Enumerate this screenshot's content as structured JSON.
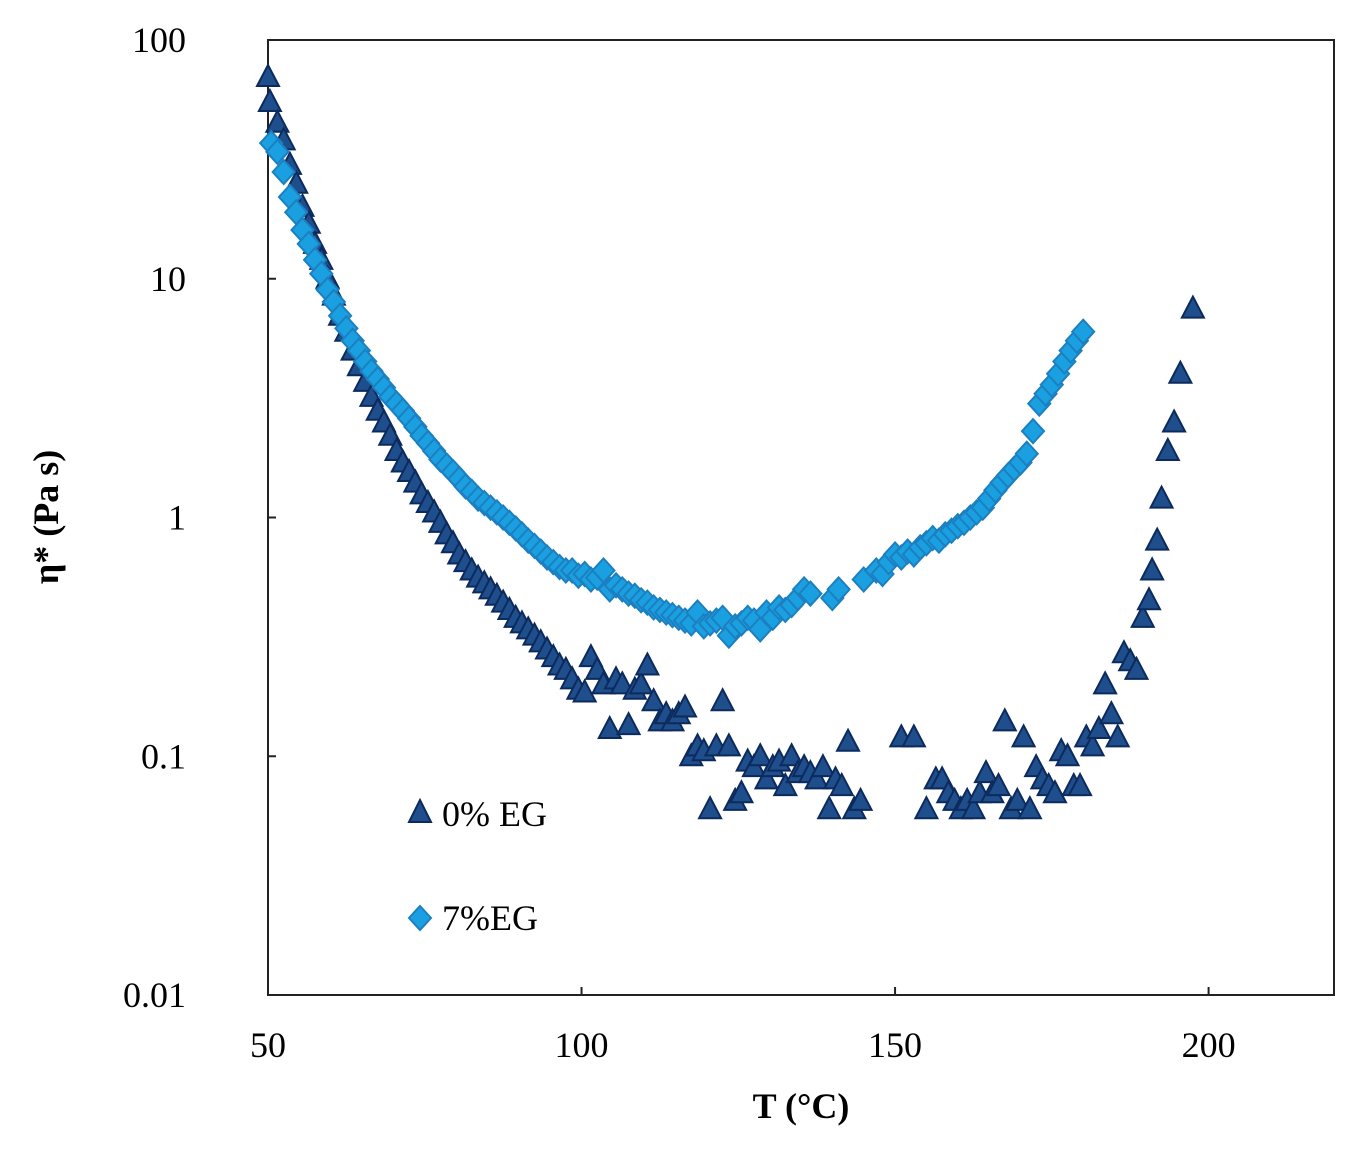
{
  "chart_data": {
    "type": "scatter",
    "title": "",
    "xlabel": "T (°C)",
    "ylabel": "η* (Pa s)",
    "xscale": "linear",
    "yscale": "log",
    "xlim": [
      50,
      220
    ],
    "ylim": [
      0.01,
      100
    ],
    "xticks": [
      50,
      100,
      150,
      200
    ],
    "xtick_labels": [
      "50",
      "100",
      "150",
      "200"
    ],
    "yticks": [
      0.01,
      0.1,
      1,
      10,
      100
    ],
    "ytick_labels": [
      "0.01",
      "0.1",
      "1",
      "10",
      "100"
    ],
    "grid": false,
    "legend_position": "bottom-left",
    "series": [
      {
        "name": "0% EG",
        "marker": "triangle",
        "color": "#1F4E8C",
        "edge_color": "#0D2A5C",
        "points": [
          [
            50,
            70
          ],
          [
            50.3,
            55
          ],
          [
            51.5,
            45
          ],
          [
            52.5,
            38
          ],
          [
            53.5,
            30
          ],
          [
            54.5,
            25
          ],
          [
            55.5,
            20
          ],
          [
            56.5,
            17
          ],
          [
            57.5,
            14
          ],
          [
            58.5,
            12
          ],
          [
            59.5,
            10
          ],
          [
            60.5,
            8.5
          ],
          [
            61.5,
            7
          ],
          [
            62.5,
            6
          ],
          [
            63.5,
            5
          ],
          [
            64.5,
            4.3
          ],
          [
            65.5,
            3.7
          ],
          [
            66.5,
            3.2
          ],
          [
            67.5,
            2.8
          ],
          [
            68.5,
            2.5
          ],
          [
            69.5,
            2.2
          ],
          [
            70.5,
            1.9
          ],
          [
            71.5,
            1.7
          ],
          [
            72.5,
            1.55
          ],
          [
            73.5,
            1.4
          ],
          [
            74.5,
            1.25
          ],
          [
            75.5,
            1.15
          ],
          [
            76.5,
            1.05
          ],
          [
            77.5,
            0.95
          ],
          [
            78.5,
            0.85
          ],
          [
            79.5,
            0.78
          ],
          [
            80.5,
            0.7
          ],
          [
            81.5,
            0.65
          ],
          [
            82.5,
            0.6
          ],
          [
            83.5,
            0.56
          ],
          [
            84.5,
            0.53
          ],
          [
            85.5,
            0.5
          ],
          [
            86.5,
            0.47
          ],
          [
            87.5,
            0.44
          ],
          [
            88.5,
            0.41
          ],
          [
            89.5,
            0.38
          ],
          [
            90.5,
            0.36
          ],
          [
            91.5,
            0.34
          ],
          [
            92.5,
            0.32
          ],
          [
            93.5,
            0.3
          ],
          [
            94.5,
            0.28
          ],
          [
            95.5,
            0.26
          ],
          [
            96.5,
            0.24
          ],
          [
            97.5,
            0.23
          ],
          [
            98.5,
            0.21
          ],
          [
            99.5,
            0.19
          ],
          [
            100.5,
            0.185
          ],
          [
            101.5,
            0.26
          ],
          [
            102.5,
            0.23
          ],
          [
            103.5,
            0.2
          ],
          [
            104.5,
            0.13
          ],
          [
            105.5,
            0.21
          ],
          [
            106.5,
            0.2
          ],
          [
            107.5,
            0.135
          ],
          [
            108.5,
            0.19
          ],
          [
            109.5,
            0.2
          ],
          [
            110.5,
            0.24
          ],
          [
            111.5,
            0.17
          ],
          [
            112.5,
            0.14
          ],
          [
            113.5,
            0.15
          ],
          [
            114.5,
            0.14
          ],
          [
            115.5,
            0.15
          ],
          [
            116.5,
            0.16
          ],
          [
            117.5,
            0.1
          ],
          [
            118.5,
            0.11
          ],
          [
            119.5,
            0.105
          ],
          [
            120.5,
            0.06
          ],
          [
            121.5,
            0.11
          ],
          [
            122.5,
            0.17
          ],
          [
            123.5,
            0.11
          ],
          [
            124.5,
            0.065
          ],
          [
            125.5,
            0.07
          ],
          [
            126.5,
            0.095
          ],
          [
            127.5,
            0.09
          ],
          [
            128.5,
            0.1
          ],
          [
            129.5,
            0.08
          ],
          [
            130.5,
            0.09
          ],
          [
            131.5,
            0.095
          ],
          [
            132.5,
            0.075
          ],
          [
            133.5,
            0.1
          ],
          [
            134.5,
            0.085
          ],
          [
            135.5,
            0.09
          ],
          [
            136.5,
            0.085
          ],
          [
            137.5,
            0.08
          ],
          [
            138.5,
            0.09
          ],
          [
            139.5,
            0.06
          ],
          [
            140.5,
            0.08
          ],
          [
            141.5,
            0.075
          ],
          [
            142.5,
            0.115
          ],
          [
            143.5,
            0.06
          ],
          [
            144.5,
            0.065
          ],
          [
            151,
            0.12
          ],
          [
            153,
            0.12
          ],
          [
            155,
            0.06
          ],
          [
            156.5,
            0.08
          ],
          [
            157.5,
            0.08
          ],
          [
            158.5,
            0.07
          ],
          [
            159.5,
            0.065
          ],
          [
            160.5,
            0.06
          ],
          [
            161.5,
            0.065
          ],
          [
            162.5,
            0.06
          ],
          [
            163.5,
            0.07
          ],
          [
            164.5,
            0.085
          ],
          [
            165.5,
            0.07
          ],
          [
            166.5,
            0.075
          ],
          [
            167.5,
            0.14
          ],
          [
            168.5,
            0.06
          ],
          [
            169.5,
            0.065
          ],
          [
            170.5,
            0.12
          ],
          [
            171.5,
            0.06
          ],
          [
            172.5,
            0.09
          ],
          [
            173.5,
            0.08
          ],
          [
            174.5,
            0.075
          ],
          [
            175.5,
            0.07
          ],
          [
            176.5,
            0.105
          ],
          [
            177.5,
            0.1
          ],
          [
            178.5,
            0.075
          ],
          [
            179.5,
            0.075
          ],
          [
            180.5,
            0.12
          ],
          [
            181.5,
            0.11
          ],
          [
            182.5,
            0.13
          ],
          [
            183.5,
            0.2
          ],
          [
            184.5,
            0.15
          ],
          [
            185.5,
            0.12
          ],
          [
            186.5,
            0.27
          ],
          [
            187.5,
            0.25
          ],
          [
            188.5,
            0.23
          ],
          [
            189.5,
            0.38
          ],
          [
            190.5,
            0.45
          ],
          [
            191,
            0.6
          ],
          [
            191.8,
            0.8
          ],
          [
            192.5,
            1.2
          ],
          [
            193.5,
            1.9
          ],
          [
            194.5,
            2.5
          ],
          [
            195.5,
            4
          ],
          [
            197.5,
            7.5
          ]
        ]
      },
      {
        "name": "7%EG",
        "marker": "diamond",
        "color": "#1AA0E0",
        "edge_color": "#1C7FC0",
        "points": [
          [
            50.5,
            37
          ],
          [
            51.5,
            34
          ],
          [
            52.5,
            28
          ],
          [
            53.5,
            22
          ],
          [
            54.5,
            19
          ],
          [
            55.5,
            16
          ],
          [
            56.5,
            14
          ],
          [
            57.5,
            12
          ],
          [
            58.5,
            10.5
          ],
          [
            59.5,
            9
          ],
          [
            60.5,
            8
          ],
          [
            61.5,
            7
          ],
          [
            62.5,
            6.2
          ],
          [
            63.5,
            5.5
          ],
          [
            64.5,
            5
          ],
          [
            65.5,
            4.5
          ],
          [
            66.5,
            4.1
          ],
          [
            67.5,
            3.8
          ],
          [
            68.5,
            3.5
          ],
          [
            69.5,
            3.2
          ],
          [
            70.5,
            3
          ],
          [
            71.5,
            2.8
          ],
          [
            72.5,
            2.6
          ],
          [
            73.5,
            2.4
          ],
          [
            74.5,
            2.2
          ],
          [
            75.5,
            2.05
          ],
          [
            76.5,
            1.9
          ],
          [
            77.5,
            1.75
          ],
          [
            78.5,
            1.65
          ],
          [
            79.5,
            1.55
          ],
          [
            80.5,
            1.45
          ],
          [
            81.5,
            1.35
          ],
          [
            82.5,
            1.28
          ],
          [
            83.5,
            1.2
          ],
          [
            84.5,
            1.15
          ],
          [
            85.5,
            1.1
          ],
          [
            86.5,
            1.05
          ],
          [
            87.5,
            1
          ],
          [
            88.5,
            0.95
          ],
          [
            89.5,
            0.9
          ],
          [
            90.5,
            0.85
          ],
          [
            91.5,
            0.8
          ],
          [
            92.5,
            0.76
          ],
          [
            93.5,
            0.72
          ],
          [
            94.5,
            0.68
          ],
          [
            95.5,
            0.65
          ],
          [
            96.5,
            0.62
          ],
          [
            97.5,
            0.6
          ],
          [
            98.5,
            0.6
          ],
          [
            99.5,
            0.57
          ],
          [
            100.5,
            0.58
          ],
          [
            101.5,
            0.55
          ],
          [
            102.5,
            0.56
          ],
          [
            103.5,
            0.6
          ],
          [
            104.5,
            0.5
          ],
          [
            105.5,
            0.52
          ],
          [
            106.5,
            0.5
          ],
          [
            107.5,
            0.48
          ],
          [
            108.5,
            0.47
          ],
          [
            109.5,
            0.45
          ],
          [
            110.5,
            0.44
          ],
          [
            111.5,
            0.42
          ],
          [
            112.5,
            0.41
          ],
          [
            113.5,
            0.4
          ],
          [
            114.5,
            0.39
          ],
          [
            115.5,
            0.38
          ],
          [
            116.5,
            0.37
          ],
          [
            117.5,
            0.36
          ],
          [
            118.5,
            0.4
          ],
          [
            119.5,
            0.35
          ],
          [
            120.5,
            0.36
          ],
          [
            121.5,
            0.37
          ],
          [
            122.5,
            0.38
          ],
          [
            123.5,
            0.32
          ],
          [
            124.5,
            0.35
          ],
          [
            125.5,
            0.36
          ],
          [
            126.5,
            0.38
          ],
          [
            127.5,
            0.37
          ],
          [
            128.5,
            0.34
          ],
          [
            129.5,
            0.4
          ],
          [
            130.5,
            0.38
          ],
          [
            131.5,
            0.42
          ],
          [
            132.5,
            0.41
          ],
          [
            133.5,
            0.43
          ],
          [
            134.5,
            0.46
          ],
          [
            135.5,
            0.5
          ],
          [
            136.5,
            0.48
          ],
          [
            140,
            0.46
          ],
          [
            141,
            0.5
          ],
          [
            145,
            0.55
          ],
          [
            147,
            0.6
          ],
          [
            148,
            0.58
          ],
          [
            149,
            0.65
          ],
          [
            150,
            0.7
          ],
          [
            151,
            0.68
          ],
          [
            152,
            0.72
          ],
          [
            153,
            0.7
          ],
          [
            154,
            0.75
          ],
          [
            155,
            0.78
          ],
          [
            156,
            0.82
          ],
          [
            157,
            0.8
          ],
          [
            158,
            0.85
          ],
          [
            159,
            0.88
          ],
          [
            160,
            0.92
          ],
          [
            161,
            0.95
          ],
          [
            162,
            1
          ],
          [
            163,
            1.05
          ],
          [
            164,
            1.1
          ],
          [
            165,
            1.2
          ],
          [
            166,
            1.3
          ],
          [
            167,
            1.4
          ],
          [
            168,
            1.5
          ],
          [
            169,
            1.6
          ],
          [
            170,
            1.7
          ],
          [
            171,
            1.85
          ],
          [
            172,
            2.3
          ],
          [
            173,
            3
          ],
          [
            174,
            3.3
          ],
          [
            175,
            3.6
          ],
          [
            176,
            4
          ],
          [
            177,
            4.5
          ],
          [
            178,
            5
          ],
          [
            179,
            5.5
          ],
          [
            180,
            6
          ]
        ]
      }
    ]
  }
}
